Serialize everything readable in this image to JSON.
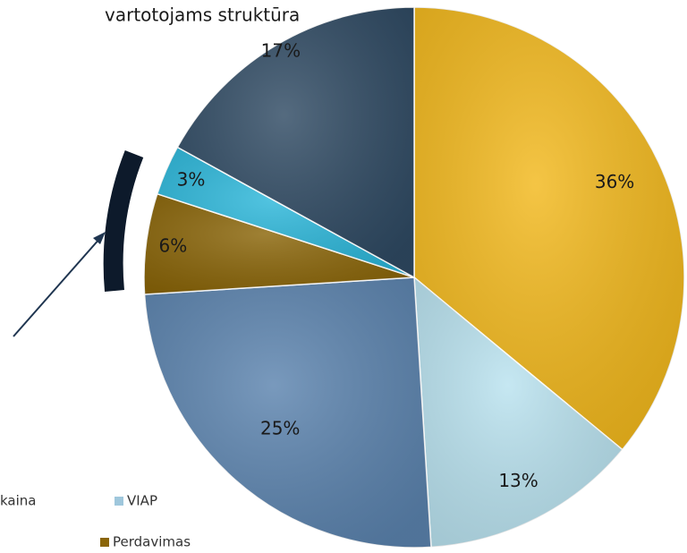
{
  "chart_data": {
    "type": "pie",
    "title": "vartotojams struktūra",
    "categories": [
      null,
      null,
      null,
      null,
      null,
      null
    ],
    "values": [
      36,
      13,
      25,
      6,
      3,
      17
    ],
    "value_labels": [
      "36%",
      "13%",
      "25%",
      "6%",
      "3%",
      "17%"
    ],
    "colors": [
      "#f2b81c",
      "#b9e2ef",
      "#5b83ae",
      "#8a6508",
      "#2cb7da",
      "#2f4a63"
    ],
    "legend": [
      {
        "label": "kaina"
      },
      {
        "label": "VIAP",
        "color": "#9fc7dc"
      },
      {
        "label": "Perdavimas",
        "color": "#8a6508"
      }
    ]
  }
}
